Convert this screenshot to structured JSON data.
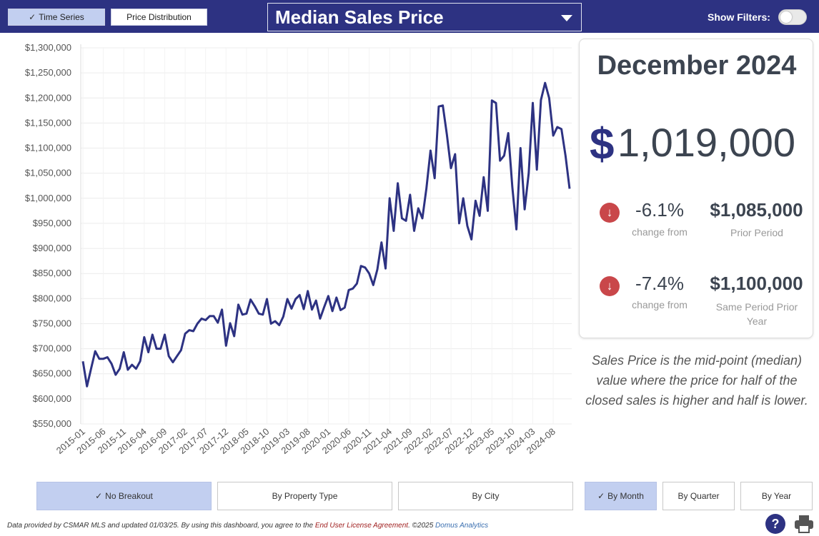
{
  "header": {
    "tabs": [
      {
        "label": "Time Series",
        "active": true
      },
      {
        "label": "Price Distribution",
        "active": false
      }
    ],
    "metric": "Median Sales Price",
    "filters_label": "Show Filters:",
    "filters_on": false
  },
  "summary": {
    "period": "December 2024",
    "currency_symbol": "$",
    "value": "1,019,000",
    "rows": [
      {
        "pct": "-6.1%",
        "pct_caption": "change from",
        "compare_value": "$1,085,000",
        "compare_caption": "Prior Period"
      },
      {
        "pct": "-7.4%",
        "pct_caption": "change from",
        "compare_value": "$1,100,000",
        "compare_caption": "Same Period Prior Year"
      }
    ]
  },
  "description": "Sales Price is the mid-point (median) value where the price for half of the closed sales is higher and half is lower.",
  "breakout_buttons": [
    {
      "label": "No Breakout",
      "active": true
    },
    {
      "label": "By Property Type",
      "active": false
    },
    {
      "label": "By City",
      "active": false
    }
  ],
  "interval_buttons": [
    {
      "label": "By Month",
      "active": true
    },
    {
      "label": "By Quarter",
      "active": false
    },
    {
      "label": "By Year",
      "active": false
    }
  ],
  "footer": {
    "text": "Data provided by CSMAR MLS and updated 01/03/25.  By using this dashboard, you agree to the",
    "eula": "End User License Agreement",
    "copyright": ".  ©2025",
    "brand": "Domus Analytics"
  },
  "icons": {
    "help": "help-icon",
    "print": "print-icon",
    "arrow": "arrow-down-icon",
    "toggle": "toggle-switch"
  },
  "colors": {
    "header": "#2d3282",
    "line": "#2d3282",
    "active_button": "#c2cff0",
    "down_arrow": "#c9474a"
  },
  "chart_data": {
    "type": "line",
    "title": "",
    "xlabel": "",
    "ylabel": "",
    "ylim": [
      550000,
      1300000
    ],
    "y_ticks": [
      "$550,000",
      "$600,000",
      "$650,000",
      "$700,000",
      "$750,000",
      "$800,000",
      "$850,000",
      "$900,000",
      "$950,000",
      "$1,000,000",
      "$1,050,000",
      "$1,100,000",
      "$1,150,000",
      "$1,200,000",
      "$1,250,000",
      "$1,300,000"
    ],
    "x_ticks": [
      "2015-01",
      "2015-06",
      "2015-11",
      "2016-04",
      "2016-09",
      "2017-02",
      "2017-07",
      "2017-12",
      "2018-05",
      "2018-10",
      "2019-03",
      "2019-08",
      "2020-01",
      "2020-06",
      "2020-11",
      "2021-04",
      "2021-09",
      "2022-02",
      "2022-07",
      "2022-12",
      "2023-05",
      "2023-10",
      "2024-03",
      "2024-08"
    ],
    "x_start": "2015-01",
    "x_end": "2024-12",
    "grid": true,
    "legend": "none",
    "series": [
      {
        "values": [
          675000,
          625000,
          660000,
          695000,
          680000,
          680000,
          683000,
          670000,
          648000,
          660000,
          693000,
          658000,
          668000,
          660000,
          675000,
          723000,
          693000,
          728000,
          700000,
          700000,
          728000,
          685000,
          673000,
          685000,
          697000,
          730000,
          737000,
          735000,
          750000,
          760000,
          757000,
          765000,
          765000,
          752000,
          778000,
          706000,
          751000,
          725000,
          788000,
          768000,
          770000,
          798000,
          785000,
          770000,
          768000,
          799000,
          750000,
          755000,
          747000,
          764000,
          799000,
          780000,
          799000,
          807000,
          779000,
          815000,
          778000,
          796000,
          760000,
          783000,
          805000,
          775000,
          802000,
          777000,
          782000,
          817000,
          820000,
          830000,
          865000,
          862000,
          850000,
          827000,
          858000,
          912000,
          860000,
          1000000,
          935000,
          1030000,
          960000,
          955000,
          1007000,
          935000,
          980000,
          960000,
          1020000,
          1095000,
          1040000,
          1183000,
          1185000,
          1127000,
          1060000,
          1088000,
          950000,
          1000000,
          945000,
          918000,
          995000,
          965000,
          1042000,
          975000,
          1195000,
          1190000,
          1075000,
          1085000,
          1130000,
          1022000,
          938000,
          1100000,
          978000,
          1050000,
          1190000,
          1057000,
          1196000,
          1230000,
          1200000,
          1125000,
          1142000,
          1138000,
          1085000,
          1019000
        ]
      }
    ]
  }
}
